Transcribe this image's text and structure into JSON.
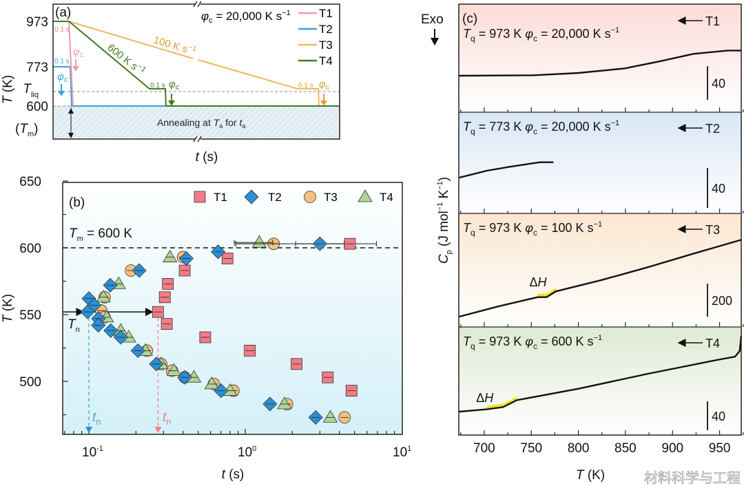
{
  "chart_data": [
    {
      "panel": "(a)",
      "type": "line",
      "xlabel_var": "t",
      "xlabel_unit": "(s)",
      "ylabel_var": "T",
      "ylabel_unit": "(K)",
      "y_ticks": [
        "973",
        "773",
        "600"
      ],
      "y_tick_tliq": {
        "var": "T",
        "sub": "liq"
      },
      "y_tick_tm": {
        "open": "(",
        "var": "T",
        "sub": "m",
        "close": ")"
      },
      "rate_note": {
        "var": "φ",
        "sub": "c",
        "text": " = 20,000 K s",
        "sup": "−1"
      },
      "hold_label": "0.1 s",
      "phi_label": {
        "var": "φ",
        "sub": "c"
      },
      "rate_100": {
        "text": "100 K s",
        "sup": "−1"
      },
      "rate_600": {
        "text": "600 K s",
        "sup": "−1"
      },
      "annealing": {
        "t1": "Annealing at ",
        "v1": "T",
        "s1": "a",
        "t2": " for ",
        "v2": "t",
        "s2": "a"
      },
      "x_axis_break": true,
      "series": [
        {
          "name": "T1",
          "color": "#f49aa4",
          "start_K": 973,
          "end_K": 600
        },
        {
          "name": "T2",
          "color": "#3aa3e0",
          "start_K": 773,
          "end_K": 600
        },
        {
          "name": "T3",
          "color": "#f2b65c",
          "start_K": 973,
          "end_K": 600
        },
        {
          "name": "T4",
          "color": "#3f7a22",
          "start_K": 973,
          "end_K": 600
        }
      ],
      "legend": "top-right"
    },
    {
      "panel": "(b)",
      "type": "scatter",
      "xscale": "log",
      "xlim": [
        0.068,
        10
      ],
      "ylim": [
        460,
        650
      ],
      "xlabel_var": "t",
      "xlabel_unit": "(s)",
      "ylabel_var": "T",
      "ylabel_unit": "(K)",
      "x_ticks": [
        {
          "base": "10",
          "exp": "-1",
          "value": 0.1
        },
        {
          "base": "10",
          "exp": "0",
          "value": 1
        },
        {
          "base": "10",
          "exp": "1",
          "value": 10
        }
      ],
      "y_ticks": [
        "500",
        "550",
        "600",
        "650"
      ],
      "tm_line": {
        "value": 600,
        "var": "T",
        "sub": "m",
        "text": " = 600 K"
      },
      "tn_label": {
        "var": "T",
        "sub": "n"
      },
      "tn_value_K": 552,
      "tn_t2": 0.1,
      "tn_t1": 0.277,
      "tn_time_label": {
        "var": "t",
        "sub": "n"
      },
      "legend": "top-right",
      "series": [
        {
          "name": "T1",
          "marker": "square",
          "color": "#f07c88",
          "points": [
            [
              4.67,
              603
            ],
            [
              0.77,
              592
            ],
            [
              0.41,
              583
            ],
            [
              0.32,
              573
            ],
            [
              0.306,
              563
            ],
            [
              0.277,
              552
            ],
            [
              0.315,
              543
            ],
            [
              0.555,
              533
            ],
            [
              1.07,
              523
            ],
            [
              2.13,
              513
            ],
            [
              3.37,
              503
            ],
            [
              4.78,
              493
            ]
          ],
          "errorbar_top": [
            2.1,
            6.9
          ]
        },
        {
          "name": "T2",
          "marker": "diamond",
          "color": "#2d8fd5",
          "points": [
            [
              3.0,
              603
            ],
            [
              0.67,
              597
            ],
            [
              0.42,
              592
            ],
            [
              0.21,
              583
            ],
            [
              0.137,
              572
            ],
            [
              0.1,
              562
            ],
            [
              0.108,
              557
            ],
            [
              0.098,
              552
            ],
            [
              0.115,
              547
            ],
            [
              0.115,
              542
            ],
            [
              0.138,
              538
            ],
            [
              0.16,
              533
            ],
            [
              0.206,
              523
            ],
            [
              0.27,
              513
            ],
            [
              0.41,
              503
            ],
            [
              0.7,
              493
            ],
            [
              1.44,
              483
            ],
            [
              2.82,
              473
            ]
          ],
          "errorbar_top": [
            0.87,
            4.3
          ]
        },
        {
          "name": "T3",
          "marker": "circle",
          "color": "#f6c082",
          "points": [
            [
              1.52,
              603
            ],
            [
              0.4,
              593
            ],
            [
              0.186,
              583
            ],
            [
              0.126,
              563
            ],
            [
              0.12,
              553
            ],
            [
              0.126,
              548
            ],
            [
              0.235,
              523
            ],
            [
              0.29,
              513
            ],
            [
              0.34,
              508
            ],
            [
              0.41,
              503
            ],
            [
              0.63,
              498
            ],
            [
              0.84,
              493
            ],
            [
              1.85,
              483
            ],
            [
              4.32,
              473
            ]
          ],
          "errorbar_top": [
            0.87,
            1.6
          ]
        },
        {
          "name": "T4",
          "marker": "triangle",
          "color": "#b0d596",
          "points": [
            [
              1.23,
              604
            ],
            [
              0.33,
              593
            ],
            [
              0.155,
              573
            ],
            [
              0.124,
              563
            ],
            [
              0.13,
              548
            ],
            [
              0.16,
              538
            ],
            [
              0.18,
              533
            ],
            [
              0.23,
              523
            ],
            [
              0.29,
              513
            ],
            [
              0.35,
              508
            ],
            [
              0.47,
              503
            ],
            [
              0.61,
              498
            ],
            [
              0.8,
              493
            ],
            [
              1.78,
              483
            ],
            [
              3.5,
              473
            ]
          ],
          "errorbar_top": [
            0.85,
            1.5
          ]
        }
      ]
    },
    {
      "panel": "(c)",
      "type": "line",
      "xlim": [
        673,
        973
      ],
      "x_ticks": [
        "700",
        "750",
        "800",
        "850",
        "900",
        "950"
      ],
      "xlabel_var": "T",
      "xlabel_unit": "(K)",
      "ylabel": {
        "var": "C",
        "sub": "p",
        "text": " (J mol",
        "sup1": "−1",
        "mid": " K",
        "sup2": "−1",
        "close": ")"
      },
      "exo_label": "Exo",
      "delta_h": "ΔH",
      "panels": [
        {
          "name": "T1",
          "tq": "973 K",
          "phic": "20,000 K s",
          "sup": "−1",
          "scale_bar": "40",
          "bg": "#fbe0dc",
          "curve": [
            [
              673.5,
              0
            ],
            [
              751.5,
              0.5
            ],
            [
              800,
              3.3
            ],
            [
              849,
              8.7
            ],
            [
              885.6,
              17
            ],
            [
              922,
              26
            ],
            [
              958.8,
              30
            ],
            [
              973,
              30
            ]
          ]
        },
        {
          "name": "T2",
          "tq": "773 K",
          "phic": "20,000 K s",
          "sup": "−1",
          "scale_bar": "40",
          "bg": "#dae7f5",
          "curve": [
            [
              673.5,
              0
            ],
            [
              702.8,
              6.9
            ],
            [
              727,
              10.8
            ],
            [
              759,
              15.4
            ],
            [
              773.5,
              15.4
            ]
          ]
        },
        {
          "name": "T3",
          "tq": "973 K",
          "phic": "100 K s",
          "sup": "−1",
          "scale_bar": "200",
          "bg": "#fbe8d4",
          "curve": [
            [
              673.5,
              0
            ],
            [
              715,
              62
            ],
            [
              756.6,
              118
            ],
            [
              766.3,
              118
            ],
            [
              776,
              153
            ],
            [
              825,
              222
            ],
            [
              873.8,
              299
            ],
            [
              922.6,
              382
            ],
            [
              973,
              465
            ]
          ],
          "delta_h_range": [
            748,
            778
          ]
        },
        {
          "name": "T4",
          "tq": "973 K",
          "phic": "600 K s",
          "sup": "−1",
          "scale_bar": "40",
          "bg": "#e1ebd5",
          "curve": [
            [
              673.5,
              0
            ],
            [
              702.8,
              3.2
            ],
            [
              720,
              6.3
            ],
            [
              734.6,
              15.9
            ],
            [
              800,
              31.7
            ],
            [
              873.8,
              52.4
            ],
            [
              946.9,
              71.4
            ],
            [
              966.5,
              76.2
            ],
            [
              971.4,
              84
            ],
            [
              973,
              105
            ]
          ],
          "delta_h_range": [
            690,
            736
          ]
        }
      ]
    }
  ],
  "watermark": "材料科学与工程"
}
